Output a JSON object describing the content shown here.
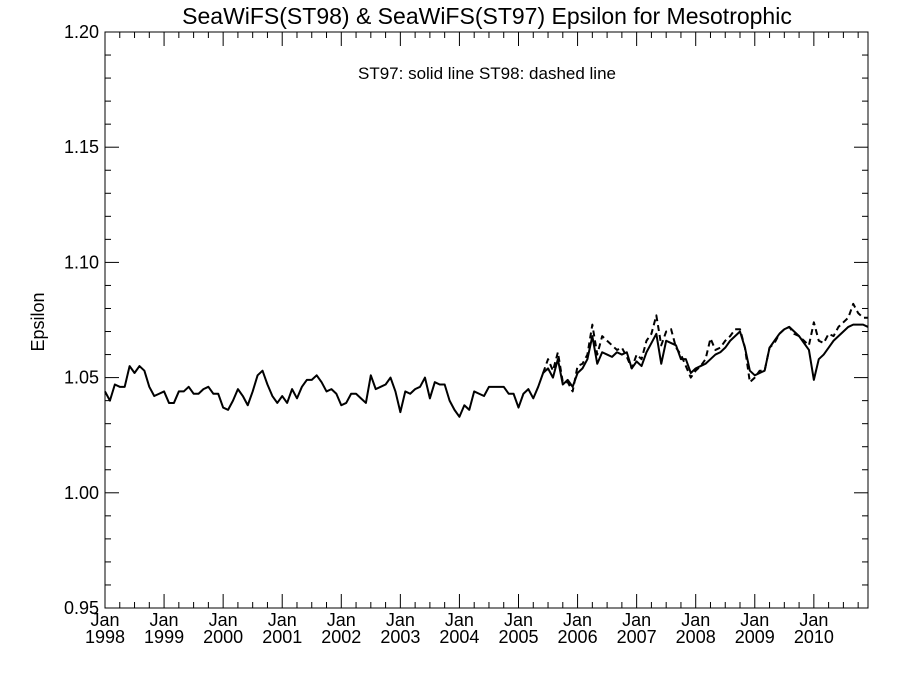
{
  "chart_data": {
    "type": "line",
    "title": "SeaWiFS(ST98) & SeaWiFS(ST97)  Epsilon for Mesotrophic",
    "annotation": "ST97: solid line   ST98: dashed line",
    "ylabel": "Epsilon",
    "xlabel": "",
    "ylim": [
      0.95,
      1.2
    ],
    "yticks": [
      0.95,
      1.0,
      1.05,
      1.1,
      1.15,
      1.2
    ],
    "ytick_labels": [
      "0.95",
      "1.00",
      "1.05",
      "1.10",
      "1.15",
      "1.20"
    ],
    "xlim": [
      "1998-01",
      "2010-12"
    ],
    "xticks": [
      {
        "month": "Jan",
        "year": "1998"
      },
      {
        "month": "Jan",
        "year": "1999"
      },
      {
        "month": "Jan",
        "year": "2000"
      },
      {
        "month": "Jan",
        "year": "2001"
      },
      {
        "month": "Jan",
        "year": "2002"
      },
      {
        "month": "Jan",
        "year": "2003"
      },
      {
        "month": "Jan",
        "year": "2004"
      },
      {
        "month": "Jan",
        "year": "2005"
      },
      {
        "month": "Jan",
        "year": "2006"
      },
      {
        "month": "Jan",
        "year": "2007"
      },
      {
        "month": "Jan",
        "year": "2008"
      },
      {
        "month": "Jan",
        "year": "2009"
      },
      {
        "month": "Jan",
        "year": "2010"
      }
    ],
    "grid": false,
    "series": [
      {
        "name": "ST97",
        "style": "solid",
        "color": "#000000",
        "x": [
          "1998-01",
          "1998-02",
          "1998-03",
          "1998-04",
          "1998-05",
          "1998-06",
          "1998-07",
          "1998-08",
          "1998-09",
          "1998-10",
          "1998-11",
          "1998-12",
          "1999-01",
          "1999-02",
          "1999-03",
          "1999-04",
          "1999-05",
          "1999-06",
          "1999-07",
          "1999-08",
          "1999-09",
          "1999-10",
          "1999-11",
          "1999-12",
          "2000-01",
          "2000-02",
          "2000-03",
          "2000-04",
          "2000-05",
          "2000-06",
          "2000-07",
          "2000-08",
          "2000-09",
          "2000-10",
          "2000-11",
          "2000-12",
          "2001-01",
          "2001-02",
          "2001-03",
          "2001-04",
          "2001-05",
          "2001-06",
          "2001-07",
          "2001-08",
          "2001-09",
          "2001-10",
          "2001-11",
          "2001-12",
          "2002-01",
          "2002-02",
          "2002-03",
          "2002-04",
          "2002-05",
          "2002-06",
          "2002-07",
          "2002-08",
          "2002-09",
          "2002-10",
          "2002-11",
          "2002-12",
          "2003-01",
          "2003-02",
          "2003-03",
          "2003-04",
          "2003-05",
          "2003-06",
          "2003-07",
          "2003-08",
          "2003-09",
          "2003-10",
          "2003-11",
          "2003-12",
          "2004-01",
          "2004-02",
          "2004-03",
          "2004-04",
          "2004-05",
          "2004-06",
          "2004-07",
          "2004-08",
          "2004-09",
          "2004-10",
          "2004-11",
          "2004-12",
          "2005-01",
          "2005-02",
          "2005-03",
          "2005-04",
          "2005-05",
          "2005-06",
          "2005-07",
          "2005-08",
          "2005-09",
          "2005-10",
          "2005-11",
          "2005-12",
          "2006-01",
          "2006-02",
          "2006-03",
          "2006-04",
          "2006-05",
          "2006-06",
          "2006-07",
          "2006-08",
          "2006-09",
          "2006-10",
          "2006-11",
          "2006-12",
          "2007-01",
          "2007-02",
          "2007-03",
          "2007-04",
          "2007-05",
          "2007-06",
          "2007-07",
          "2007-08",
          "2007-09",
          "2007-10",
          "2007-11",
          "2007-12",
          "2008-01",
          "2008-02",
          "2008-03",
          "2008-04",
          "2008-05",
          "2008-06",
          "2008-07",
          "2008-08",
          "2008-09",
          "2008-10",
          "2008-11",
          "2008-12",
          "2009-01",
          "2009-02",
          "2009-03",
          "2009-04",
          "2009-05",
          "2009-06",
          "2009-07",
          "2009-08",
          "2009-09",
          "2009-10",
          "2009-11",
          "2009-12",
          "2010-01",
          "2010-02",
          "2010-03",
          "2010-04",
          "2010-05",
          "2010-06",
          "2010-07",
          "2010-08",
          "2010-09",
          "2010-10",
          "2010-11",
          "2010-12"
        ],
        "values": [
          1.044,
          1.04,
          1.047,
          1.046,
          1.046,
          1.055,
          1.052,
          1.055,
          1.053,
          1.046,
          1.042,
          1.043,
          1.044,
          1.039,
          1.039,
          1.044,
          1.044,
          1.046,
          1.043,
          1.043,
          1.045,
          1.046,
          1.043,
          1.043,
          1.037,
          1.036,
          1.04,
          1.045,
          1.042,
          1.038,
          1.044,
          1.051,
          1.053,
          1.047,
          1.042,
          1.039,
          1.042,
          1.039,
          1.045,
          1.041,
          1.046,
          1.049,
          1.049,
          1.051,
          1.048,
          1.044,
          1.045,
          1.043,
          1.038,
          1.039,
          1.043,
          1.043,
          1.041,
          1.039,
          1.051,
          1.045,
          1.046,
          1.047,
          1.05,
          1.044,
          1.035,
          1.044,
          1.043,
          1.045,
          1.046,
          1.05,
          1.041,
          1.048,
          1.047,
          1.047,
          1.04,
          1.036,
          1.033,
          1.038,
          1.036,
          1.044,
          1.043,
          1.042,
          1.046,
          1.046,
          1.046,
          1.046,
          1.043,
          1.043,
          1.037,
          1.043,
          1.045,
          1.041,
          1.046,
          1.052,
          1.054,
          1.05,
          1.058,
          1.047,
          1.049,
          1.046,
          1.052,
          1.054,
          1.058,
          1.068,
          1.056,
          1.061,
          1.06,
          1.059,
          1.061,
          1.06,
          1.061,
          1.054,
          1.057,
          1.055,
          1.061,
          1.065,
          1.069,
          1.056,
          1.066,
          1.065,
          1.064,
          1.058,
          1.058,
          1.052,
          1.054,
          1.055,
          1.056,
          1.058,
          1.06,
          1.061,
          1.063,
          1.066,
          1.068,
          1.07,
          1.063,
          1.053,
          1.051,
          1.052,
          1.053,
          1.063,
          1.066,
          1.069,
          1.071,
          1.072,
          1.07,
          1.068,
          1.065,
          1.062,
          1.049,
          1.058,
          1.06,
          1.063,
          1.066,
          1.068,
          1.07,
          1.072,
          1.073,
          1.073,
          1.073,
          1.072
        ]
      },
      {
        "name": "ST98",
        "style": "dashed",
        "color": "#000000",
        "x": [
          "2005-06",
          "2005-07",
          "2005-08",
          "2005-09",
          "2005-10",
          "2005-11",
          "2005-12",
          "2006-01",
          "2006-02",
          "2006-03",
          "2006-04",
          "2006-05",
          "2006-06",
          "2006-07",
          "2006-08",
          "2006-09",
          "2006-10",
          "2006-11",
          "2006-12",
          "2007-01",
          "2007-02",
          "2007-03",
          "2007-04",
          "2007-05",
          "2007-06",
          "2007-07",
          "2007-08",
          "2007-09",
          "2007-10",
          "2007-11",
          "2007-12",
          "2008-01",
          "2008-02",
          "2008-03",
          "2008-04",
          "2008-05",
          "2008-06",
          "2008-07",
          "2008-08",
          "2008-09",
          "2008-10",
          "2008-11",
          "2008-12",
          "2009-01",
          "2009-02",
          "2009-03",
          "2009-04",
          "2009-05",
          "2009-06",
          "2009-07",
          "2009-08",
          "2009-09",
          "2009-10",
          "2009-11",
          "2009-12",
          "2010-01",
          "2010-02",
          "2010-03",
          "2010-04",
          "2010-05",
          "2010-06",
          "2010-07",
          "2010-08",
          "2010-09",
          "2010-10",
          "2010-11",
          "2010-12"
        ],
        "values": [
          1.052,
          1.058,
          1.053,
          1.061,
          1.048,
          1.048,
          1.044,
          1.055,
          1.056,
          1.06,
          1.073,
          1.06,
          1.068,
          1.066,
          1.064,
          1.062,
          1.063,
          1.059,
          1.054,
          1.06,
          1.058,
          1.066,
          1.069,
          1.077,
          1.064,
          1.07,
          1.071,
          1.063,
          1.06,
          1.055,
          1.05,
          1.053,
          1.055,
          1.058,
          1.067,
          1.062,
          1.063,
          1.066,
          1.068,
          1.071,
          1.071,
          1.063,
          1.048,
          1.05,
          1.053,
          1.053,
          1.063,
          1.065,
          1.069,
          1.071,
          1.072,
          1.069,
          1.068,
          1.066,
          1.064,
          1.074,
          1.066,
          1.065,
          1.069,
          1.068,
          1.072,
          1.074,
          1.076,
          1.082,
          1.078,
          1.076,
          1.076
        ]
      }
    ]
  }
}
